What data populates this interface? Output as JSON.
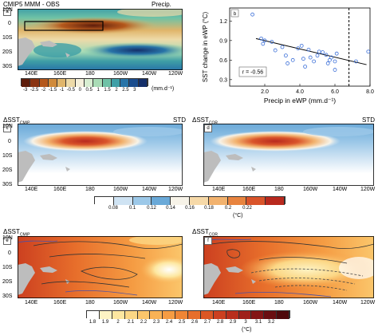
{
  "panel_a": {
    "title_left": "CMIP5 MMM - OBS",
    "title_right": "Precip.",
    "label": "a",
    "lat_labels": [
      "10N",
      "0",
      "10S",
      "20S",
      "30S"
    ],
    "lon_labels": [
      "140E",
      "160E",
      "180",
      "160W",
      "140W",
      "120W"
    ],
    "colorbar_ticks": [
      "-3",
      "-2.5",
      "-2",
      "-1.5",
      "-1",
      "-0.5",
      "0",
      "0.5",
      "1",
      "1.5",
      "2",
      "2.5",
      "3"
    ],
    "colorbar_unit": "(mm.d⁻¹)",
    "colorbar_colors": [
      "#5e1d0b",
      "#8a3412",
      "#b4581c",
      "#d08a3a",
      "#e0b56a",
      "#eddaa8",
      "#f5f0dc",
      "#d8eed2",
      "#a9dcb6",
      "#6fc2a6",
      "#3f9fa6",
      "#2874a8",
      "#1b4d8e",
      "#152f6a"
    ]
  },
  "panel_b": {
    "label": "b",
    "xlabel": "Precip in eWP (mm.d⁻¹)",
    "ylabel": "SST change in eWP (°C)",
    "correlation": "r = -0.56"
  },
  "panel_c": {
    "label": "c",
    "title_delta": "ΔSST",
    "title_sub": "CMIP",
    "title_right": "STD"
  },
  "panel_d": {
    "label": "d",
    "title_delta": "ΔSST",
    "title_sub": "COR",
    "title_right": "STD"
  },
  "panel_e": {
    "label": "e",
    "title_delta": "ΔSST",
    "title_sub": "CMIP"
  },
  "panel_f": {
    "label": "f",
    "title_delta": "ΔSST",
    "title_sub": "COR"
  },
  "map_axes": {
    "lat_labels": [
      "10N",
      "0",
      "10S",
      "20S",
      "30S"
    ],
    "lon_labels": [
      "140E",
      "160E",
      "180",
      "160W",
      "140W",
      "120W"
    ]
  },
  "colorbar_std": {
    "ticks": [
      "0.08",
      "0.1",
      "0.12",
      "0.14",
      "0.16",
      "0.18",
      "0.2",
      "0.22"
    ],
    "unit": "(°C)",
    "colors": [
      "#ffffff",
      "#cfe3f3",
      "#9cc8e8",
      "#6aa9d8",
      "#f7f3e8",
      "#f6d9a8",
      "#f2b26e",
      "#e8843f",
      "#d9542a",
      "#b8291e"
    ]
  },
  "colorbar_mean": {
    "ticks": [
      "1.8",
      "1.9",
      "2",
      "2.1",
      "2.2",
      "2.3",
      "2.4",
      "2.5",
      "2.6",
      "2.7",
      "2.8",
      "2.9",
      "3",
      "3.1",
      "3.2"
    ],
    "unit": "(°C)",
    "colors": [
      "#ffffff",
      "#fdf3c4",
      "#fde7a0",
      "#fcd785",
      "#fbc66b",
      "#f9b255",
      "#f59c43",
      "#ef8535",
      "#e76e2b",
      "#dc5724",
      "#cc4020",
      "#b82e1c",
      "#9f2019",
      "#841515",
      "#6a0d10",
      "#4f080b"
    ]
  },
  "chart_data": {
    "type": "scatter",
    "x_label": "Precip in eWP (mm.d⁻¹)",
    "y_label": "SST change in eWP (°C)",
    "xlim": [
      0,
      8
    ],
    "ylim": [
      0.2,
      1.4
    ],
    "x_ticks": [
      2.0,
      4.0,
      6.0,
      8.0
    ],
    "y_ticks": [
      0.3,
      0.6,
      0.9,
      1.2
    ],
    "points": [
      {
        "x": 1.3,
        "y": 1.3
      },
      {
        "x": 1.8,
        "y": 0.93
      },
      {
        "x": 1.9,
        "y": 0.85
      },
      {
        "x": 2.0,
        "y": 0.9
      },
      {
        "x": 2.4,
        "y": 0.88
      },
      {
        "x": 2.6,
        "y": 0.75
      },
      {
        "x": 3.0,
        "y": 0.8
      },
      {
        "x": 3.2,
        "y": 0.67
      },
      {
        "x": 3.3,
        "y": 0.55
      },
      {
        "x": 3.6,
        "y": 0.6
      },
      {
        "x": 3.9,
        "y": 0.78
      },
      {
        "x": 4.1,
        "y": 0.82
      },
      {
        "x": 4.2,
        "y": 0.62
      },
      {
        "x": 4.3,
        "y": 0.5
      },
      {
        "x": 4.5,
        "y": 0.76
      },
      {
        "x": 4.6,
        "y": 0.64
      },
      {
        "x": 4.8,
        "y": 0.58
      },
      {
        "x": 5.0,
        "y": 0.67
      },
      {
        "x": 5.1,
        "y": 0.73
      },
      {
        "x": 5.3,
        "y": 0.72
      },
      {
        "x": 5.5,
        "y": 0.68
      },
      {
        "x": 5.6,
        "y": 0.55
      },
      {
        "x": 5.7,
        "y": 0.6
      },
      {
        "x": 5.8,
        "y": 0.64
      },
      {
        "x": 6.0,
        "y": 0.58
      },
      {
        "x": 6.0,
        "y": 0.45
      },
      {
        "x": 6.1,
        "y": 0.7
      },
      {
        "x": 7.2,
        "y": 0.58
      },
      {
        "x": 7.9,
        "y": 0.73
      }
    ],
    "regression_line": {
      "x": [
        1.5,
        7.8
      ],
      "y": [
        0.93,
        0.53
      ]
    },
    "vertical_dashed_x": 6.8
  }
}
